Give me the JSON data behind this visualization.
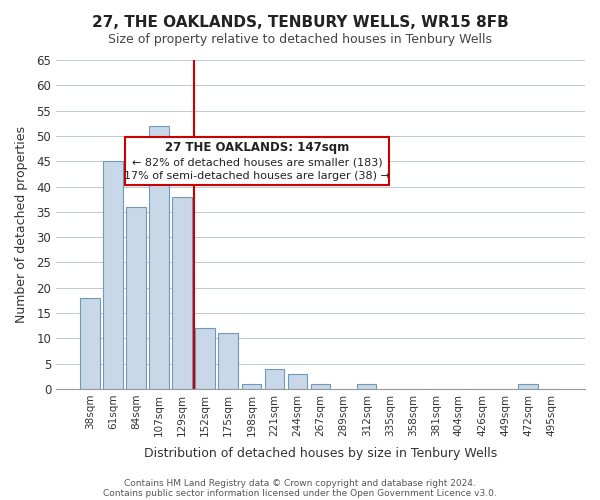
{
  "title": "27, THE OAKLANDS, TENBURY WELLS, WR15 8FB",
  "subtitle": "Size of property relative to detached houses in Tenbury Wells",
  "xlabel": "Distribution of detached houses by size in Tenbury Wells",
  "ylabel": "Number of detached properties",
  "categories": [
    "38sqm",
    "61sqm",
    "84sqm",
    "107sqm",
    "129sqm",
    "152sqm",
    "175sqm",
    "198sqm",
    "221sqm",
    "244sqm",
    "267sqm",
    "289sqm",
    "312sqm",
    "335sqm",
    "358sqm",
    "381sqm",
    "404sqm",
    "426sqm",
    "449sqm",
    "472sqm",
    "495sqm"
  ],
  "values": [
    18,
    45,
    36,
    52,
    38,
    12,
    11,
    1,
    4,
    3,
    1,
    0,
    1,
    0,
    0,
    0,
    0,
    0,
    0,
    1,
    0
  ],
  "bar_color": "#c8d8e8",
  "bar_edge_color": "#7098b8",
  "reference_line_x": 4.5,
  "reference_line_color": "#cc0000",
  "ylim": [
    0,
    65
  ],
  "yticks": [
    0,
    5,
    10,
    15,
    20,
    25,
    30,
    35,
    40,
    45,
    50,
    55,
    60,
    65
  ],
  "annotation_title": "27 THE OAKLANDS: 147sqm",
  "annotation_line1": "← 82% of detached houses are smaller (183)",
  "annotation_line2": "17% of semi-detached houses are larger (38) →",
  "annotation_box_color": "#ffffff",
  "annotation_box_edge": "#cc0000",
  "footer1": "Contains HM Land Registry data © Crown copyright and database right 2024.",
  "footer2": "Contains public sector information licensed under the Open Government Licence v3.0.",
  "background_color": "#ffffff",
  "grid_color": "#c0c8d0"
}
